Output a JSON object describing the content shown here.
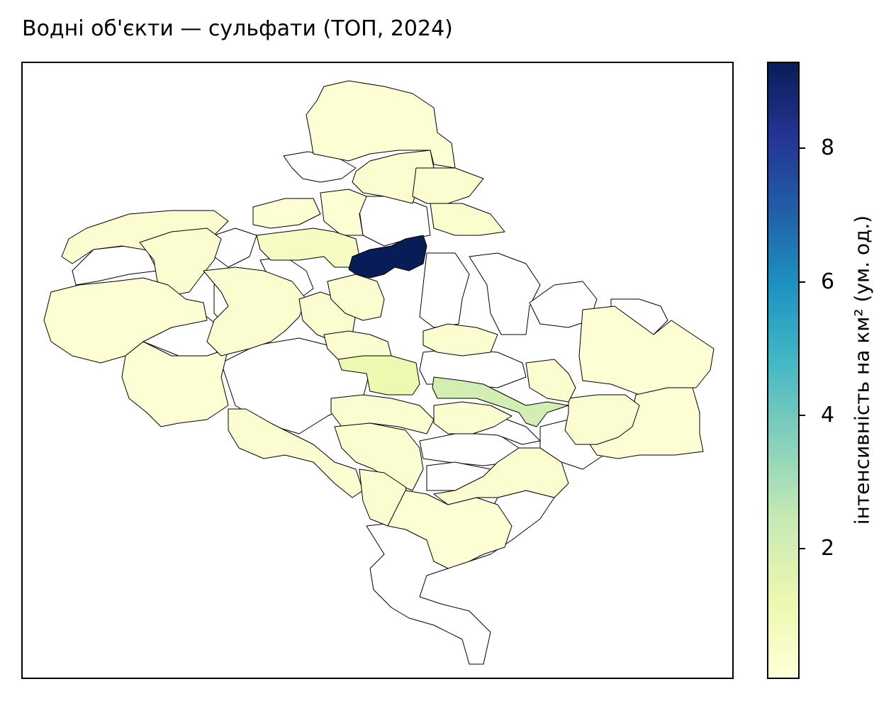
{
  "title": "Водні об'єкти — сульфати (ТОП, 2024)",
  "colorbar": {
    "label": "інтенсивність на км² (ум. од.)",
    "colormap": "YlGnBu",
    "range": [
      0.05,
      9.3
    ],
    "ticks": [
      {
        "value": 2,
        "label": "2"
      },
      {
        "value": 4,
        "label": "4"
      },
      {
        "value": 6,
        "label": "6"
      },
      {
        "value": 8,
        "label": "8"
      }
    ]
  },
  "map": {
    "no_data_color": "#ffffff",
    "regions": [
      {
        "name": "north-top",
        "value": 0.2
      },
      {
        "name": "north-middle",
        "value": 0.3
      },
      {
        "name": "north-east",
        "value": 0.3
      },
      {
        "name": "north-east-lower",
        "value": 0.4
      },
      {
        "name": "north-small-1",
        "value": 0.2
      },
      {
        "name": "north-small-2",
        "value": 0.2
      },
      {
        "name": "center-north-light",
        "value": 0.7
      },
      {
        "name": "hotspot-dark",
        "value": 9.3
      },
      {
        "name": "west-top-1",
        "value": 0.3
      },
      {
        "name": "west-top-2",
        "value": 0.3
      },
      {
        "name": "west-large",
        "value": 0.2
      },
      {
        "name": "west-south",
        "value": 0.2
      },
      {
        "name": "center-strip",
        "value": 0.3
      },
      {
        "name": "center-small-1",
        "value": 0.3
      },
      {
        "name": "center-small-2",
        "value": 0.3
      },
      {
        "name": "center-light-green",
        "value": 1.2
      },
      {
        "name": "center-mid-1",
        "value": 0.3
      },
      {
        "name": "center-mid-2",
        "value": 0.3
      },
      {
        "name": "river-green",
        "value": 2.0
      },
      {
        "name": "east-large",
        "value": 0.2
      },
      {
        "name": "east-south",
        "value": 0.2
      },
      {
        "name": "east-mid",
        "value": 0.3
      },
      {
        "name": "east-small",
        "value": 0.3
      },
      {
        "name": "south-west-strip",
        "value": 0.3
      },
      {
        "name": "south-west-2",
        "value": 0.3
      },
      {
        "name": "south-center-1",
        "value": 0.3
      },
      {
        "name": "south-center-2",
        "value": 0.3
      },
      {
        "name": "south-center-3",
        "value": 0.3
      },
      {
        "name": "south-main",
        "value": 0.2
      },
      {
        "name": "south-east",
        "value": 0.3
      },
      {
        "name": "nodata-1"
      },
      {
        "name": "nodata-2"
      },
      {
        "name": "nodata-3"
      },
      {
        "name": "nodata-4"
      },
      {
        "name": "nodata-5"
      },
      {
        "name": "nodata-6"
      },
      {
        "name": "nodata-7"
      },
      {
        "name": "nodata-8"
      },
      {
        "name": "nodata-9"
      },
      {
        "name": "nodata-10"
      },
      {
        "name": "nodata-11"
      },
      {
        "name": "nodata-12"
      },
      {
        "name": "nodata-13"
      },
      {
        "name": "nodata-14"
      },
      {
        "name": "nodata-15"
      },
      {
        "name": "nodata-16"
      },
      {
        "name": "nodata-17"
      },
      {
        "name": "nodata-18"
      }
    ]
  }
}
